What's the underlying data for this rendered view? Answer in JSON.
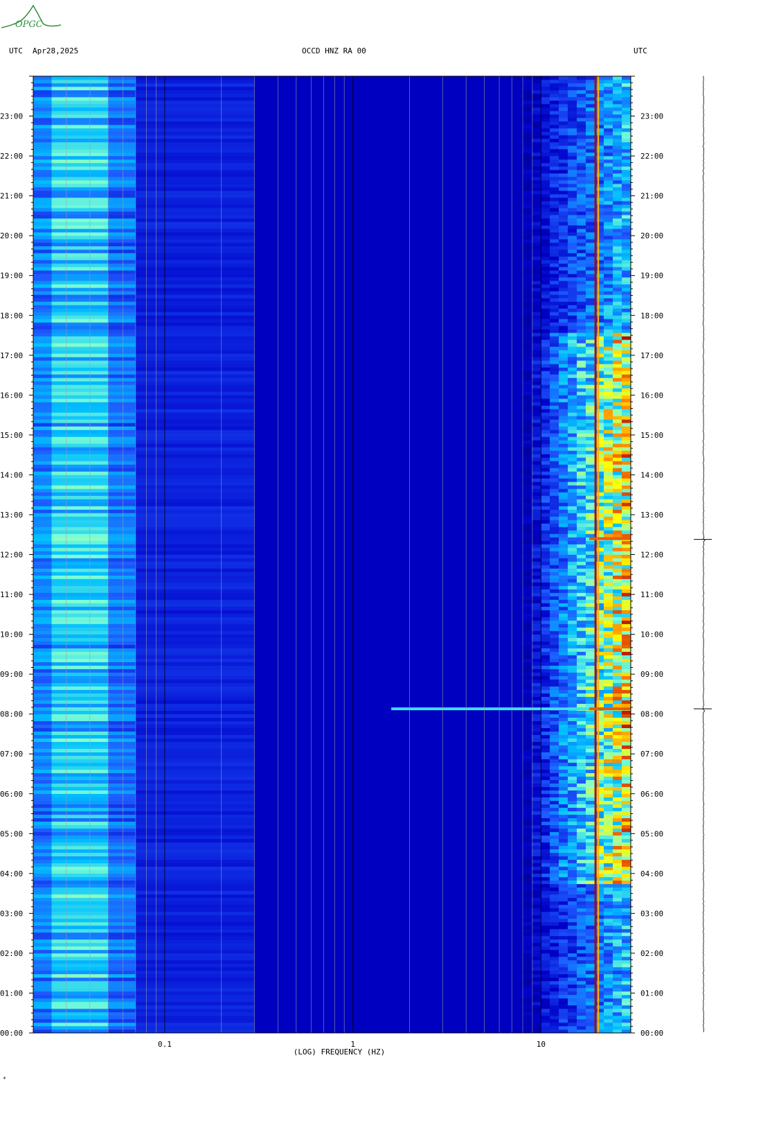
{
  "header": {
    "left_tz": "UTC",
    "date": "Apr28,2025",
    "station": "OCCD HNZ RA 00",
    "right_tz": "UTC"
  },
  "logo": {
    "text": "OPGC",
    "color": "#2f8f3a"
  },
  "footer_mark": "*",
  "chart_data": {
    "type": "heatmap",
    "title": "OCCD HNZ RA 00",
    "xlabel": "(LOG) FREQUENCY (HZ)",
    "x_scale": "log",
    "xlim": [
      0.02,
      30
    ],
    "x_ticks": [
      {
        "value": 0.1,
        "label": "0.1"
      },
      {
        "value": 1,
        "label": "1"
      },
      {
        "value": 10,
        "label": "10"
      }
    ],
    "y_ticks": [
      "00:00",
      "01:00",
      "02:00",
      "03:00",
      "04:00",
      "05:00",
      "06:00",
      "07:00",
      "08:00",
      "09:00",
      "10:00",
      "11:00",
      "12:00",
      "13:00",
      "14:00",
      "15:00",
      "16:00",
      "17:00",
      "18:00",
      "19:00",
      "20:00",
      "21:00",
      "22:00",
      "23:00"
    ],
    "ylim_hours": [
      0,
      24
    ],
    "colormap": [
      "#00007a",
      "#0000c8",
      "#1e5aff",
      "#00bfff",
      "#7fffd4",
      "#ffff00",
      "#ff8000",
      "#b00000"
    ],
    "features": [
      {
        "name": "low-frequency microseism band",
        "freq_range_hz": [
          0.02,
          0.07
        ],
        "level": 0.45
      },
      {
        "name": "persistent spectral line",
        "freq_hz": 19.5,
        "level": 1.0
      },
      {
        "name": "daytime cultural noise",
        "freq_range_hz": [
          8,
          30
        ],
        "time_range_hours": [
          3.7,
          17.6
        ],
        "level": 0.7
      },
      {
        "name": "transient event",
        "time_hours": 8.13,
        "freq_range_hz": [
          1.6,
          30
        ],
        "level": 0.9
      },
      {
        "name": "transient event",
        "time_hours": 12.4,
        "freq_range_hz": [
          20,
          30
        ],
        "level": 0.9
      }
    ],
    "seismogram_events_hours": [
      8.13,
      12.38
    ]
  }
}
